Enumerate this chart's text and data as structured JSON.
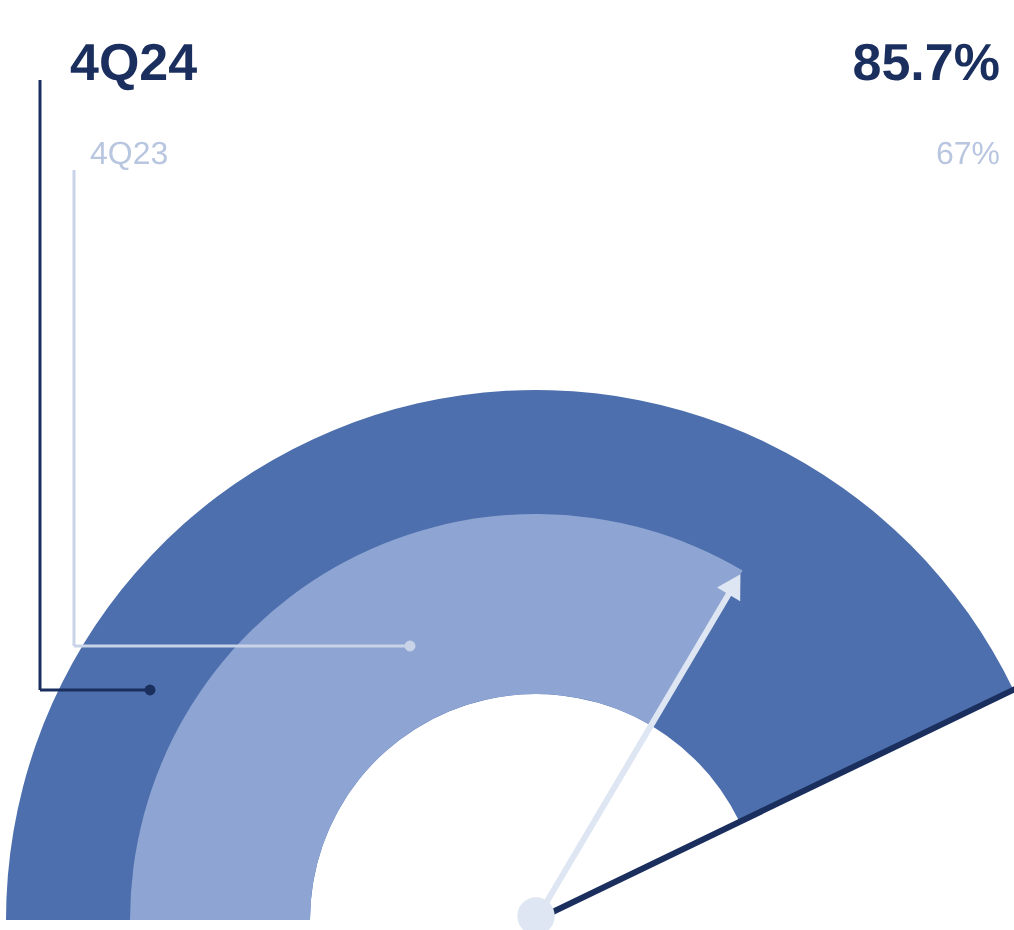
{
  "chart_data": {
    "type": "other",
    "categories": [
      "4Q24",
      "4Q23"
    ],
    "values": [
      85.7,
      67
    ],
    "colors": [
      "#4d6fad",
      "#8ea4d2"
    ],
    "value_labels": [
      "85.7%",
      "67%"
    ]
  }
}
